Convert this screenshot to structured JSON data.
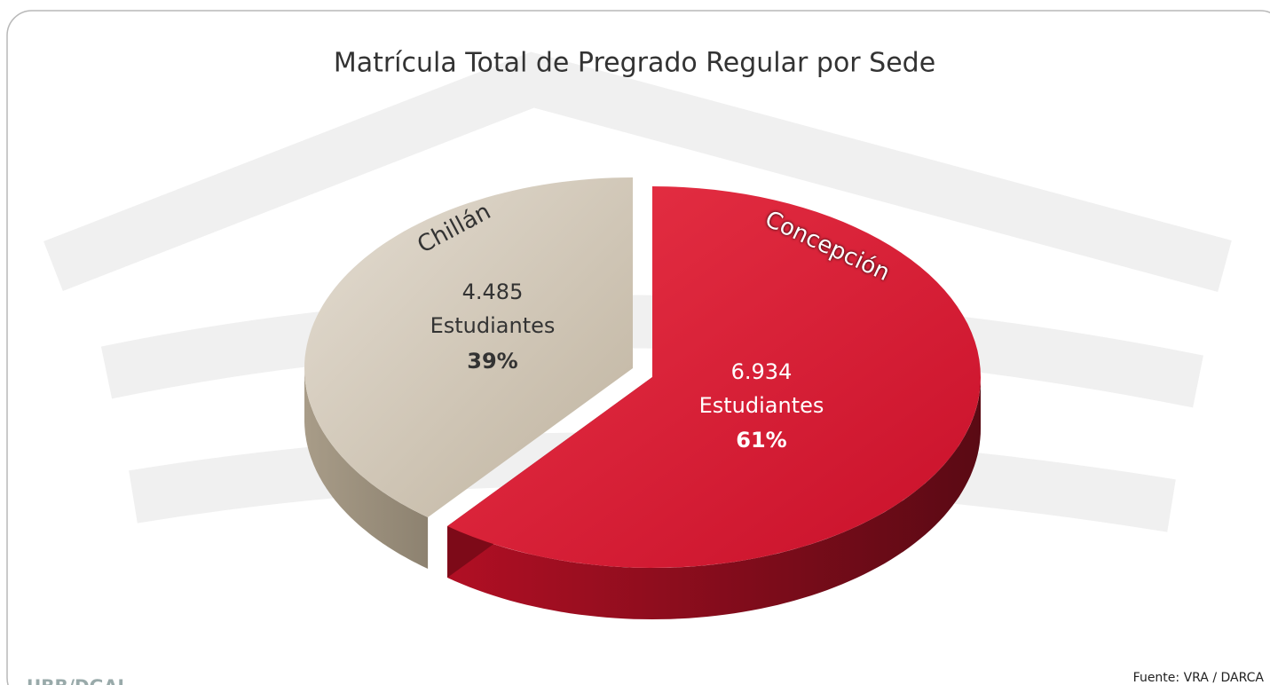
{
  "chart_data": {
    "type": "pie",
    "title": "Matrícula Total de Pregrado Regular por Sede",
    "categories": [
      "Chillán",
      "Concepción"
    ],
    "values": [
      4485,
      6934
    ],
    "value_labels": [
      "4.485",
      "6.934"
    ],
    "unit_label": "Estudiantes",
    "percent_labels": [
      "39%",
      "61%"
    ],
    "colors": [
      "#d2c9bb",
      "#d8192e"
    ],
    "source": "Fuente: VRA / DARCA",
    "logo_text": "UBB/DGAI"
  }
}
